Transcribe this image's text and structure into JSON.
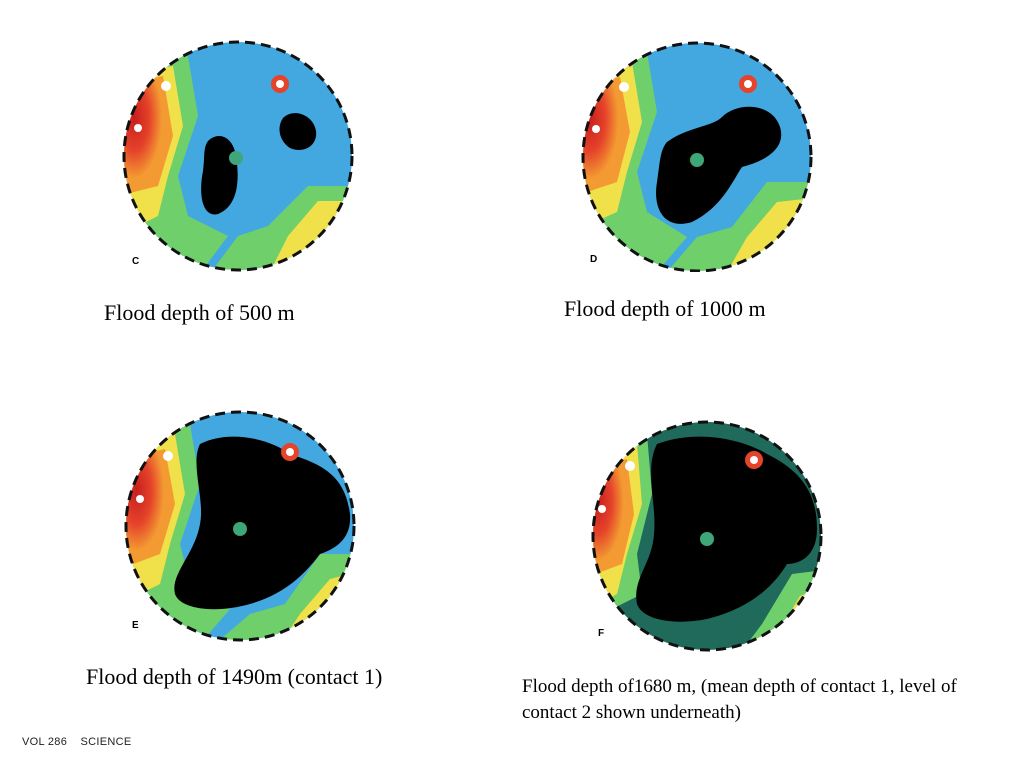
{
  "panels": [
    {
      "letter": "C",
      "caption": "Flood depth of 500 m"
    },
    {
      "letter": "D",
      "caption": "Flood depth of 1000 m"
    },
    {
      "letter": "E",
      "caption": "Flood depth of 1490m (contact 1)"
    },
    {
      "letter": "F",
      "caption": "Flood depth of1680 m, (mean depth of contact 1, level of contact 2 shown underneath)"
    }
  ],
  "footer": {
    "vol": "VOL 286",
    "journal": "SCIENCE"
  },
  "colors": {
    "ocean": "#43a8e0",
    "flood": "#000000",
    "highland_red": "#e03a25",
    "highland_orange": "#f29a2e",
    "highland_yellow": "#f0e04a",
    "lowland_green": "#6fcf6a",
    "flood_shadow_teal": "#1f6a5a"
  }
}
